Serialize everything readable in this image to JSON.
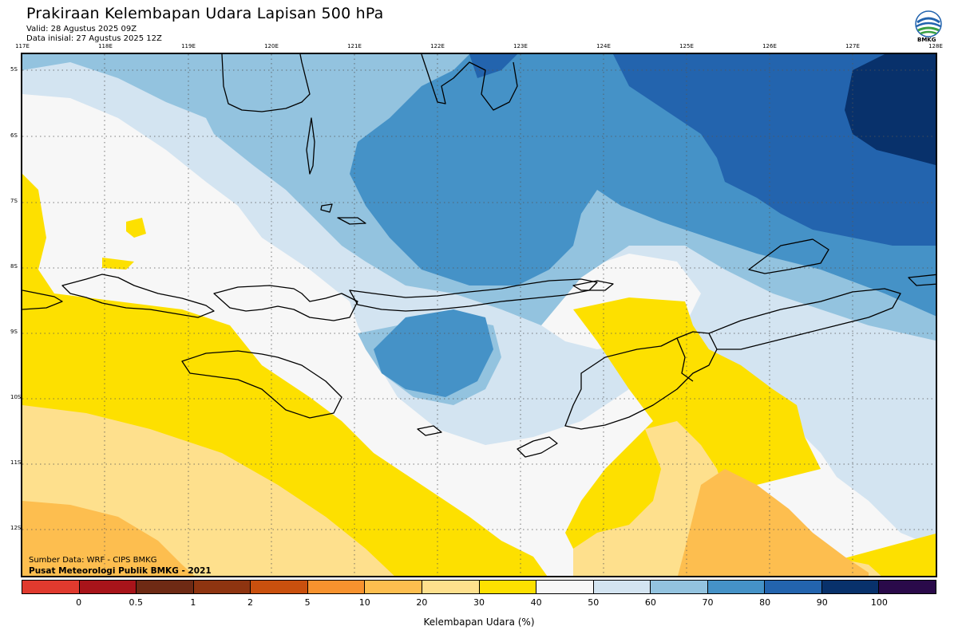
{
  "header": {
    "title": "Prakiraan Kelembapan Udara Lapisan 500 hPa",
    "valid": "Valid: 28 Agustus 2025 09Z",
    "initial": "Data inisial: 27 Agustus 2025 12Z"
  },
  "logo": {
    "text": "BMKG",
    "icon": "bmkg-logo-icon"
  },
  "axes": {
    "lon_labels": [
      "117E",
      "118E",
      "119E",
      "120E",
      "121E",
      "122E",
      "123E",
      "124E",
      "125E",
      "126E",
      "127E",
      "128E"
    ],
    "lat_labels": [
      "5S",
      "6S",
      "7S",
      "8S",
      "9S",
      "10S",
      "11S",
      "12S"
    ],
    "lon_range": [
      117,
      128
    ],
    "lat_range": [
      -4.77,
      -13.0
    ],
    "grid": "dotted"
  },
  "source": {
    "line1": "Sumber Data: WRF - CIPS BMKG",
    "line2": "Pusat Meteorologi Publik BMKG - 2021"
  },
  "legend": {
    "title": "Kelembapan Udara (%)",
    "tick_labels": [
      "0",
      "0.5",
      "1",
      "2",
      "5",
      "10",
      "20",
      "30",
      "40",
      "50",
      "60",
      "70",
      "80",
      "90",
      "100"
    ],
    "colors": [
      "#e03a2e",
      "#a8141a",
      "#6e2a14",
      "#8e3410",
      "#c9500e",
      "#f7922e",
      "#fdbe4f",
      "#fee08d",
      "#fde000",
      "#f7f7f7",
      "#d3e4f1",
      "#93c3df",
      "#4592c7",
      "#2364ae",
      "#08316b",
      "#2a0a4a"
    ]
  },
  "colors": {
    "rh_30_40": "#fee08d",
    "rh_40_50": "#fde000",
    "rh_50_60": "#f7f7f7",
    "rh_60_70": "#d3e4f1",
    "rh_70_80": "#93c3df",
    "rh_80_90": "#4592c7",
    "rh_90_100": "#2364ae",
    "rh_100": "#08316b",
    "rh_20_30": "#fdbe4f",
    "coastline": "#000000"
  }
}
